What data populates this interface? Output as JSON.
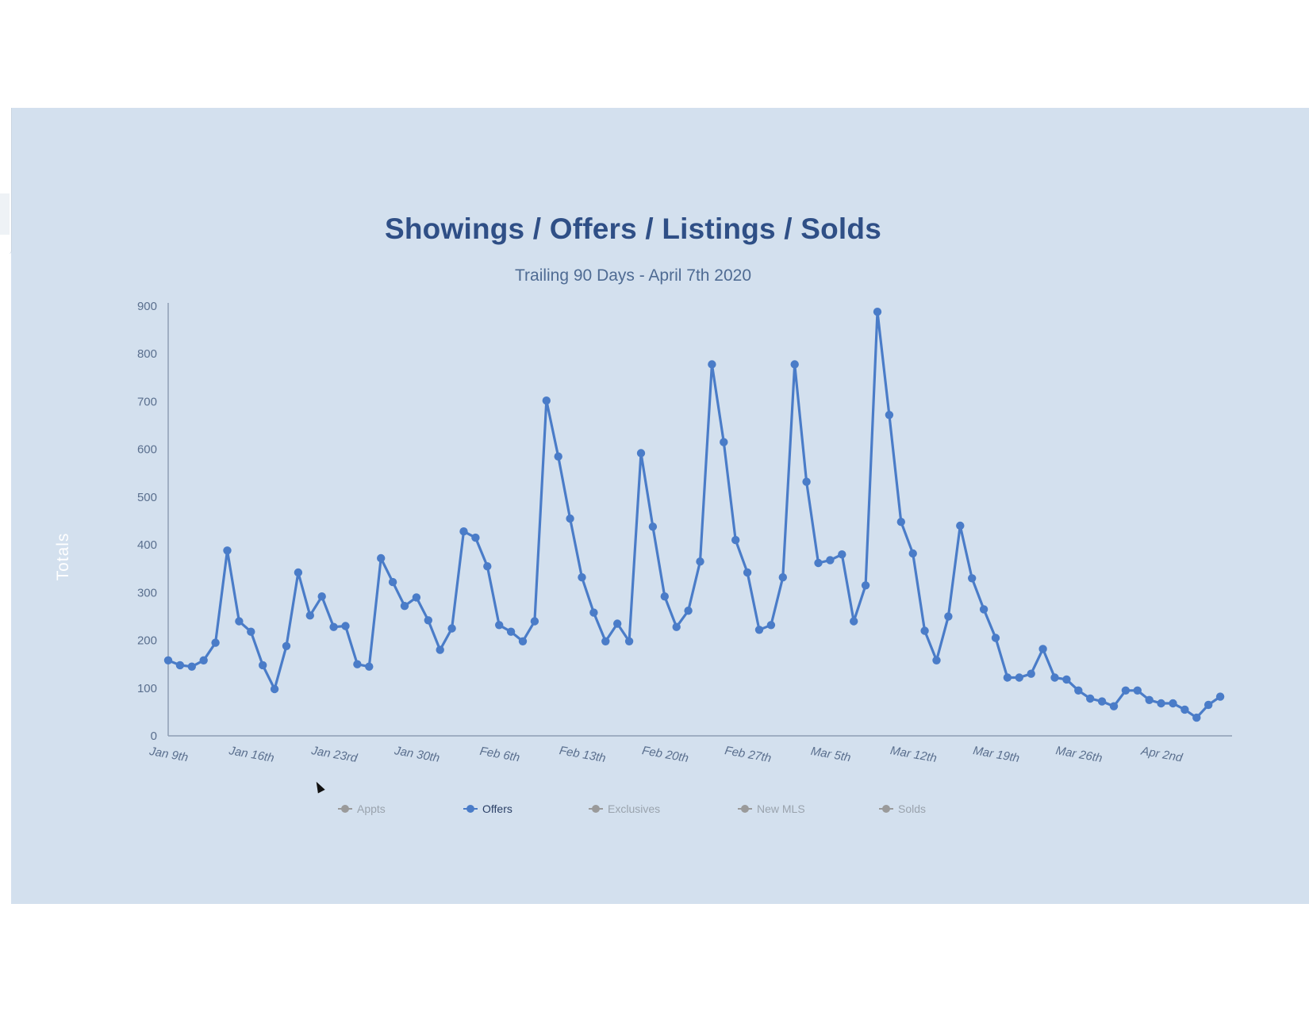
{
  "chart_data": {
    "type": "line",
    "title": "Showings / Offers / Listings / Solds",
    "subtitle": "Trailing 90 Days - April 7th 2020",
    "ylabel": "Totals",
    "xlabel": "",
    "ylim": [
      0,
      900
    ],
    "yticks": [
      0,
      100,
      200,
      300,
      400,
      500,
      600,
      700,
      800,
      900
    ],
    "grid": false,
    "legend_position": "bottom",
    "x_tick_labels": [
      {
        "label": "Jan 9th",
        "day": 0
      },
      {
        "label": "Jan 16th",
        "day": 7
      },
      {
        "label": "Jan 23rd",
        "day": 14
      },
      {
        "label": "Jan 30th",
        "day": 21
      },
      {
        "label": "Feb 6th",
        "day": 28
      },
      {
        "label": "Feb 13th",
        "day": 35
      },
      {
        "label": "Feb 20th",
        "day": 42
      },
      {
        "label": "Feb 27th",
        "day": 49
      },
      {
        "label": "Mar 5th",
        "day": 56
      },
      {
        "label": "Mar 12th",
        "day": 63
      },
      {
        "label": "Mar 19th",
        "day": 70
      },
      {
        "label": "Mar 26th",
        "day": 77
      },
      {
        "label": "Apr 2nd",
        "day": 84
      }
    ],
    "x_range": [
      0,
      90
    ],
    "series": [
      {
        "name": "Offers",
        "color": "#4a7cc8",
        "values": [
          158,
          148,
          145,
          158,
          195,
          388,
          240,
          218,
          148,
          98,
          188,
          342,
          252,
          292,
          228,
          230,
          150,
          145,
          372,
          322,
          272,
          290,
          242,
          180,
          225,
          428,
          415,
          355,
          232,
          218,
          198,
          240,
          702,
          585,
          455,
          332,
          258,
          198,
          235,
          198,
          592,
          438,
          292,
          228,
          262,
          365,
          778,
          615,
          410,
          342,
          222,
          232,
          332,
          778,
          532,
          362,
          368,
          380,
          240,
          315,
          888,
          672,
          448,
          382,
          220,
          158,
          250,
          440,
          330,
          265,
          205,
          122,
          122,
          130,
          182,
          122,
          118,
          95,
          78,
          72,
          62,
          95,
          95,
          75,
          68,
          68,
          55,
          38,
          65,
          82
        ]
      }
    ],
    "legend": [
      {
        "name": "Appts",
        "active": false
      },
      {
        "name": "Offers",
        "active": true
      },
      {
        "name": "Exclusives",
        "active": false
      },
      {
        "name": "New MLS",
        "active": false
      },
      {
        "name": "Solds",
        "active": false
      }
    ]
  }
}
